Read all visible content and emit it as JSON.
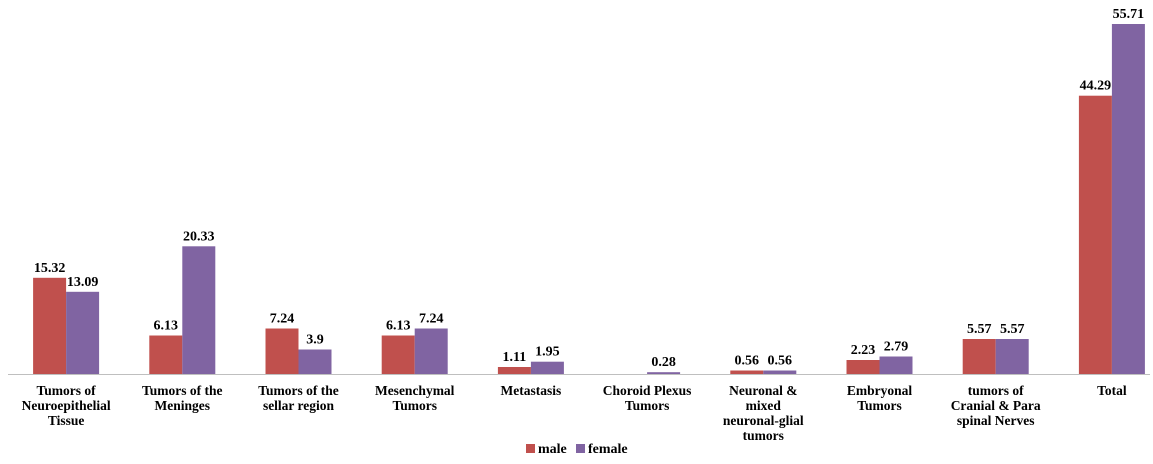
{
  "chart_data": {
    "type": "bar",
    "categories": [
      "Tumors of Neuroepithelial Tissue",
      "Tumors of the Meninges",
      "Tumors of the sellar region",
      "Mesenchymal Tumors",
      "Metastasis",
      "Choroid Plexus Tumors",
      "Neuronal & mixed neuronal-glial tumors",
      "Embryonal Tumors",
      "tumors of Cranial & Para spinal Nerves",
      "Total"
    ],
    "category_lines": [
      [
        "Tumors of",
        "Neuroepithelial",
        "Tissue"
      ],
      [
        "Tumors of the",
        "Meninges"
      ],
      [
        "Tumors of the",
        "sellar region"
      ],
      [
        "Mesenchymal",
        "Tumors"
      ],
      [
        "Metastasis"
      ],
      [
        "Choroid Plexus",
        "Tumors"
      ],
      [
        "Neuronal &",
        "mixed",
        "neuronal-glial",
        "tumors"
      ],
      [
        "Embryonal",
        "Tumors"
      ],
      [
        "tumors of",
        "Cranial & Para",
        "spinal Nerves"
      ],
      [
        "Total"
      ]
    ],
    "series": [
      {
        "name": "male",
        "color": "#c0504d",
        "values": [
          15.32,
          6.13,
          7.24,
          6.13,
          1.11,
          null,
          0.56,
          2.23,
          5.57,
          44.29
        ],
        "labels": [
          "15.32",
          "6.13",
          "7.24",
          "6.13",
          "1.11",
          "",
          "0.56",
          "2.23",
          "5.57",
          "44.29"
        ]
      },
      {
        "name": "female",
        "color": "#8064a2",
        "values": [
          13.09,
          20.33,
          3.9,
          7.24,
          1.95,
          0.28,
          0.56,
          2.79,
          5.57,
          55.71
        ],
        "labels": [
          "13.09",
          "20.33",
          "3.9",
          "7.24",
          "1.95",
          "0.28",
          "0.56",
          "2.79",
          "5.57",
          "55.71"
        ]
      }
    ],
    "ylim": [
      0,
      60
    ],
    "grid": false,
    "legend": "bottom",
    "title": "",
    "xlabel": "",
    "ylabel": ""
  }
}
